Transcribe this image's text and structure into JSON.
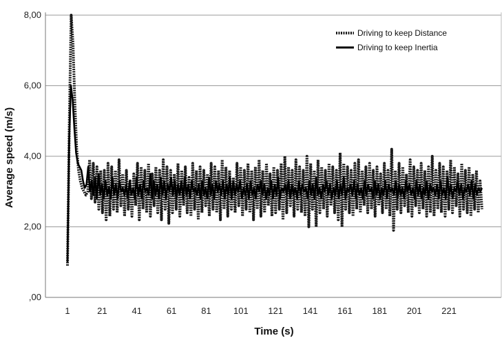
{
  "chart_data": {
    "type": "line",
    "title": "",
    "xlabel": "Time (s)",
    "ylabel": "Average speed (m/s)",
    "x_tick_labels": [
      "1",
      "21",
      "41",
      "61",
      "81",
      "101",
      "121",
      "141",
      "161",
      "181",
      "201",
      "221"
    ],
    "y_tick_labels": [
      "8,00",
      "6,00",
      "4,00",
      "2,00",
      ",00"
    ],
    "xlim": [
      1,
      240
    ],
    "ylim": [
      0,
      8
    ],
    "grid": "horizontal",
    "legend_position": "top-right",
    "series": [
      {
        "name": "Driving to keep Distance",
        "style": "dotted",
        "color": "#1a1a1a",
        "values": [
          0.9,
          5.0,
          8.0,
          7.2,
          5.5,
          4.2,
          3.6,
          3.3,
          3.1,
          3.0,
          2.9,
          3.0,
          3.9,
          2.8,
          3.8,
          2.7,
          3.7,
          2.5,
          3.6,
          2.4,
          3.6,
          2.2,
          3.8,
          2.3,
          3.7,
          2.5,
          3.6,
          2.4,
          3.9,
          2.6,
          3.5,
          2.3,
          3.6,
          2.5,
          3.3,
          2.3,
          3.5,
          2.6,
          3.8,
          2.2,
          3.7,
          2.5,
          3.6,
          2.4,
          3.8,
          2.3,
          3.5,
          2.6,
          3.7,
          2.4,
          3.6,
          2.2,
          3.9,
          2.5,
          3.7,
          2.1,
          3.6,
          2.4,
          3.5,
          2.5,
          3.8,
          2.3,
          3.6,
          2.6,
          3.7,
          2.4,
          3.4,
          2.3,
          3.8,
          2.5,
          3.6,
          2.2,
          3.7,
          2.4,
          3.6,
          2.6,
          3.5,
          2.3,
          3.8,
          2.5,
          3.7,
          2.4,
          3.6,
          2.2,
          3.9,
          2.5,
          3.7,
          2.3,
          3.6,
          2.5,
          3.4,
          2.4,
          3.8,
          2.6,
          3.7,
          2.3,
          3.6,
          2.5,
          3.8,
          2.4,
          3.6,
          2.2,
          3.7,
          2.5,
          3.9,
          2.3,
          3.6,
          2.4,
          3.8,
          2.6,
          3.5,
          2.3,
          3.7,
          2.4,
          3.6,
          2.5,
          3.8,
          2.2,
          4.0,
          2.4,
          3.7,
          2.6,
          3.6,
          2.3,
          3.9,
          2.5,
          3.7,
          2.4,
          3.6,
          2.3,
          4.0,
          2.0,
          3.8,
          2.5,
          3.6,
          2.0,
          3.9,
          2.4,
          3.7,
          2.5,
          3.6,
          2.3,
          3.8,
          2.6,
          3.7,
          2.4,
          3.6,
          2.2,
          4.1,
          2.0,
          3.8,
          2.5,
          3.7,
          2.4,
          3.6,
          2.3,
          3.8,
          2.5,
          3.9,
          2.4,
          3.6,
          2.6,
          3.7,
          2.4,
          3.8,
          2.5,
          3.6,
          2.3,
          3.7,
          2.6,
          3.5,
          2.4,
          3.8,
          2.5,
          3.6,
          2.3,
          4.2,
          1.9,
          3.6,
          2.5,
          3.8,
          2.4,
          3.7,
          2.6,
          3.5,
          2.4,
          3.9,
          2.3,
          3.7,
          2.6,
          3.6,
          2.4,
          3.8,
          2.5,
          3.6,
          2.3,
          3.7,
          2.4,
          4.0,
          2.3,
          3.6,
          2.5,
          3.8,
          2.4,
          3.7,
          2.3,
          3.6,
          2.5,
          3.9,
          2.4,
          3.7,
          2.6,
          3.5,
          2.3,
          3.8,
          2.5,
          3.6,
          2.4,
          3.7,
          2.3,
          3.5,
          2.5,
          3.6,
          2.4,
          3.3,
          2.5
        ]
      },
      {
        "name": "Driving to keep Inertia",
        "style": "solid",
        "color": "#000000",
        "values": [
          1.0,
          4.5,
          6.0,
          5.6,
          4.8,
          4.1,
          3.8,
          3.7,
          3.6,
          3.3,
          3.1,
          3.2,
          3.7,
          3.0,
          3.3,
          2.9,
          3.4,
          2.8,
          3.5,
          2.9,
          3.2,
          2.8,
          3.3,
          2.9,
          3.1,
          2.8,
          3.4,
          2.9,
          3.2,
          2.8,
          3.3,
          3.0,
          3.1,
          2.9,
          3.2,
          2.8,
          3.3,
          2.9,
          3.1,
          2.8,
          3.4,
          2.9,
          3.2,
          2.8,
          3.3,
          3.0,
          3.1,
          2.9,
          3.5,
          2.8,
          3.3,
          2.9,
          3.2,
          2.8,
          3.4,
          2.9,
          3.3,
          2.8,
          3.2,
          3.0,
          3.4,
          2.9,
          3.3,
          2.8,
          3.2,
          2.9,
          3.3,
          2.8,
          3.4,
          2.9,
          3.2,
          2.8,
          3.3,
          3.0,
          3.1,
          2.9,
          3.2,
          2.8,
          3.3,
          2.9,
          3.1,
          2.8,
          3.4,
          2.9,
          3.2,
          2.8,
          3.3,
          3.0,
          3.2,
          2.9,
          3.3,
          2.8,
          3.2,
          2.9,
          3.4,
          2.8,
          3.3,
          2.9,
          3.2,
          3.0,
          3.3,
          2.8,
          3.1,
          2.9,
          3.2,
          2.8,
          3.3,
          2.9,
          3.1,
          2.8,
          3.2,
          3.0,
          3.3,
          2.9,
          3.2,
          2.8,
          3.1,
          2.9,
          3.3,
          2.8,
          3.2,
          2.9,
          3.4,
          2.8,
          3.1,
          3.0,
          3.2,
          2.9,
          3.3,
          2.8,
          3.2,
          2.9,
          3.1,
          2.8,
          3.3,
          2.9,
          3.2,
          3.0,
          3.1,
          2.8,
          3.3,
          2.9,
          3.2,
          2.8,
          3.4,
          2.9,
          3.1,
          2.8,
          3.2,
          3.0,
          3.3,
          2.9,
          3.2,
          2.8,
          3.1,
          2.9,
          3.3,
          2.8,
          3.2,
          2.9,
          3.4,
          2.8,
          3.1,
          3.0,
          3.2,
          2.9,
          3.3,
          2.8,
          3.2,
          2.9,
          3.1,
          2.8,
          3.3,
          2.9,
          3.2,
          3.0,
          3.1,
          2.8,
          3.3,
          2.9,
          3.2,
          2.8,
          3.1,
          2.9,
          3.3,
          2.8,
          3.2,
          3.0,
          3.1,
          2.9,
          3.3,
          2.8,
          3.2,
          2.9,
          3.1,
          2.8,
          3.3,
          3.0,
          3.2,
          2.9,
          3.1,
          2.8,
          3.3,
          2.9,
          3.2,
          2.8,
          3.1,
          2.9,
          3.3,
          2.8,
          3.2,
          3.0,
          3.1,
          2.9,
          3.2,
          2.8,
          3.3,
          2.9,
          3.1,
          2.8,
          3.4,
          2.9,
          3.2,
          2.8,
          3.1,
          3.0,
          3.3,
          2.9,
          3.2,
          2.8,
          3.1,
          3.0,
          3.2,
          2.9,
          3.3,
          2.8,
          3.2,
          2.9,
          3.1,
          3.0,
          3.1
        ]
      }
    ]
  }
}
